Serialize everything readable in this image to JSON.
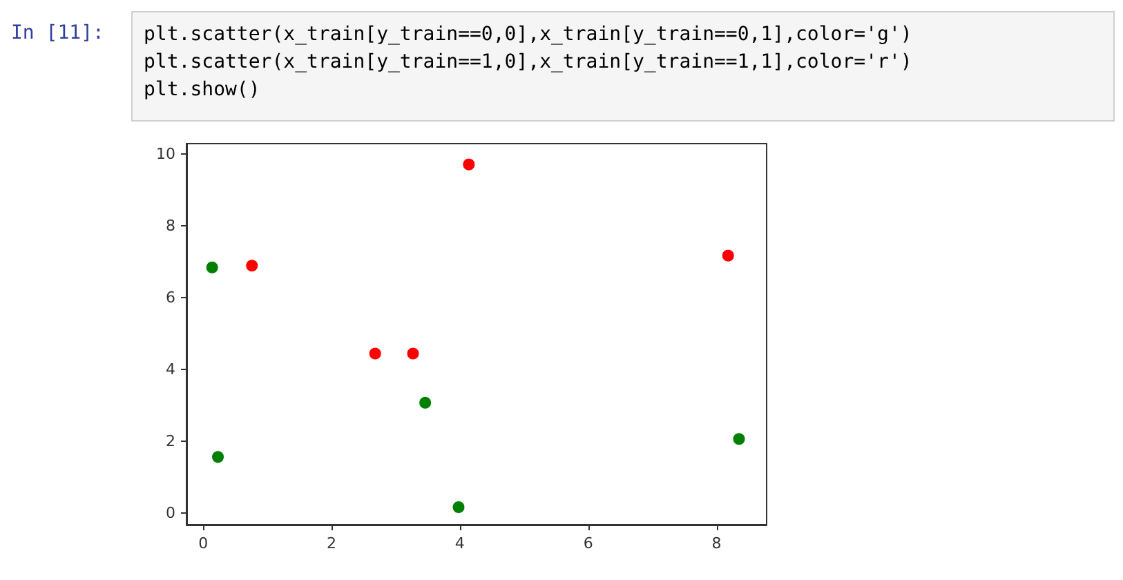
{
  "chart_data": {
    "type": "scatter",
    "annotations": [
      "In  [11]:",
      "plt.scatter(x_train[y_train==0,0],x_train[y_train==0,1],color='g')",
      "plt.scatter(x_train[y_train==1,0],x_train[y_train==1,1],color='r')",
      "plt.show()"
    ],
    "series": [
      {
        "color": "#008000",
        "x": [
          0.14,
          0.23,
          3.46,
          3.98,
          8.35
        ],
        "values": [
          6.84,
          1.56,
          3.07,
          0.16,
          2.06
        ]
      },
      {
        "color": "#ff0000",
        "x": [
          0.76,
          2.68,
          3.27,
          4.14,
          8.18
        ],
        "values": [
          6.89,
          4.44,
          4.44,
          9.71,
          7.17
        ]
      }
    ],
    "xlim": [
      -0.26,
      8.78
    ],
    "xticks": [
      0,
      2,
      4,
      6,
      8
    ],
    "ylim": [
      -0.33,
      10.29
    ],
    "yticks": [
      0,
      2,
      4,
      6,
      8,
      10
    ],
    "grid": false,
    "marker": "circle"
  }
}
